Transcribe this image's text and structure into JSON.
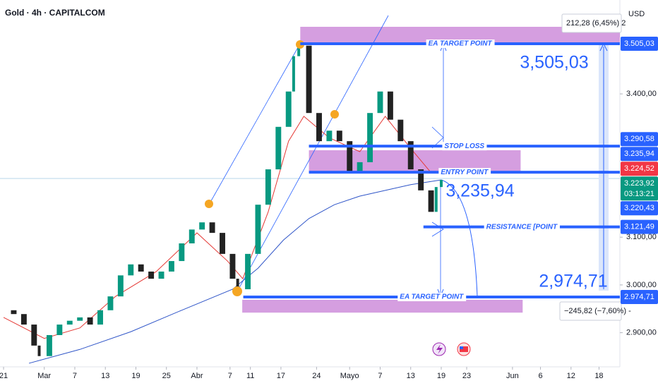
{
  "chart_data": {
    "type": "candlestick",
    "title": "Gold · 4h · CAPITALCOM",
    "currency": "USD",
    "xlim": [
      -0.7,
      121.1
    ],
    "xticks": [
      {
        "value": 0,
        "label": "21"
      },
      {
        "value": 8,
        "label": "Mar"
      },
      {
        "value": 14,
        "label": "7"
      },
      {
        "value": 20,
        "label": "13"
      },
      {
        "value": 26,
        "label": "19"
      },
      {
        "value": 32,
        "label": "25"
      },
      {
        "value": 38,
        "label": "Abr"
      },
      {
        "value": 44.5,
        "label": "7"
      },
      {
        "value": 48.5,
        "label": "11"
      },
      {
        "value": 54.5,
        "label": "17"
      },
      {
        "value": 61.5,
        "label": "24"
      },
      {
        "value": 68,
        "label": "Mayo"
      },
      {
        "value": 74,
        "label": "7"
      },
      {
        "value": 80,
        "label": "13"
      },
      {
        "value": 86,
        "label": "19"
      },
      {
        "value": 91,
        "label": "23"
      },
      {
        "value": 100,
        "label": "Jun"
      },
      {
        "value": 105.5,
        "label": "6"
      },
      {
        "value": 111.5,
        "label": "12"
      },
      {
        "value": 117,
        "label": "18"
      }
    ],
    "ylim": [
      2828.5,
      3596.6
    ],
    "yticks": [
      {
        "value": 2900,
        "label": "2.900,00"
      },
      {
        "value": 3000,
        "label": "3.000,00"
      },
      {
        "value": 3100,
        "label": "3.100,00"
      },
      {
        "value": 3400,
        "label": "3.400,00"
      }
    ],
    "price": {
      "color_up": "#089981",
      "color_down": "#222222",
      "x": [
        0,
        2,
        4,
        6,
        7,
        9,
        11,
        13,
        15,
        17,
        19,
        21,
        23,
        25,
        27,
        29,
        31,
        33,
        35,
        37,
        39,
        41,
        43,
        45,
        46,
        48,
        50,
        52,
        54,
        56,
        57,
        58,
        60,
        62,
        64,
        66,
        68,
        70,
        72,
        74,
        76,
        78,
        80,
        82,
        84,
        85,
        86
      ],
      "values": [
        2947,
        2939,
        2917,
        2873,
        2851,
        2895,
        2917,
        2925,
        2932,
        2917,
        2947,
        2976,
        3020,
        3043,
        3028,
        3013,
        3028,
        3050,
        3087,
        3116,
        3131,
        3109,
        3065,
        3013,
        2991,
        3065,
        3168,
        3242,
        3331,
        3405,
        3479,
        3501,
        3360,
        3301,
        3323,
        3301,
        3235,
        3257,
        3360,
        3405,
        3346,
        3301,
        3242,
        3198,
        3153,
        3205,
        3220
      ]
    },
    "averages": [
      {
        "color": "#e53935",
        "x": [
          0,
          8,
          15,
          22,
          30,
          38,
          44,
          47,
          52,
          56,
          59,
          64,
          70,
          75,
          80,
          84,
          86
        ],
        "values": [
          2932,
          2888,
          2910,
          2976,
          3028,
          3109,
          3050,
          3013,
          3153,
          3301,
          3353,
          3308,
          3279,
          3353,
          3286,
          3235,
          3235
        ]
      },
      {
        "color": "#2f55c8",
        "x": [
          5,
          15,
          25,
          35,
          45,
          50,
          55,
          60,
          65,
          70,
          75,
          80,
          86
        ],
        "values": [
          2836,
          2865,
          2902,
          2947,
          2991,
          3035,
          3094,
          3139,
          3168,
          3186,
          3198,
          3210,
          3220
        ]
      }
    ],
    "zones": [
      {
        "low": 3508,
        "high": 3540.5,
        "x0": 58.3,
        "x1": 121.1
      },
      {
        "low": 3237.6,
        "high": 3282,
        "x0": 60,
        "x1": 101.6
      },
      {
        "low": 2942,
        "high": 2969,
        "x0": 46.9,
        "x1": 102
      }
    ],
    "levels": [
      {
        "label": "EA TARGET POINT",
        "value": 3505.03,
        "x0": 58.3
      },
      {
        "label": "STOP LOSS",
        "value": 3290.58,
        "x0": 60
      },
      {
        "label": "ENTRY POINT",
        "value": 3235.94,
        "x0": 60
      },
      {
        "label": "RESISTANCE [POINT",
        "value": 3121.49,
        "x0": 82.5
      },
      {
        "label": "EA TARGET POINT",
        "value": 2974.71,
        "x0": 47.1
      }
    ],
    "price_markers": [
      {
        "label": "3.505,03",
        "value": 3505.03,
        "color": "#2962ff"
      },
      {
        "label": "3.290,58",
        "value": 3290.58,
        "color": "#2962ff"
      },
      {
        "label": "3.235,94",
        "value": 3235.94,
        "color": "#2962ff"
      },
      {
        "label": "3.224,52",
        "value": 3224.52,
        "color": "#f23645"
      },
      {
        "label": "3.223,92",
        "value": 3223.92,
        "color": "#089981",
        "countdown": "03:13:21"
      },
      {
        "label": "3.220,43",
        "value": 3220.43,
        "color": "#2962ff"
      },
      {
        "label": "3.121,49",
        "value": 3121.49,
        "color": "#2962ff"
      },
      {
        "label": "2.974,71",
        "value": 2974.71,
        "color": "#2962ff"
      }
    ],
    "annotations": [
      {
        "text": "3,505,03",
        "value": 3505.03
      },
      {
        "text": "3,235,94",
        "value": 3235.94
      },
      {
        "text": "2,974,71",
        "value": 2974.71
      }
    ],
    "measure_up": "212,28 (6,45%) 2",
    "measure_down": "−245,82 (−7,60%) -"
  }
}
